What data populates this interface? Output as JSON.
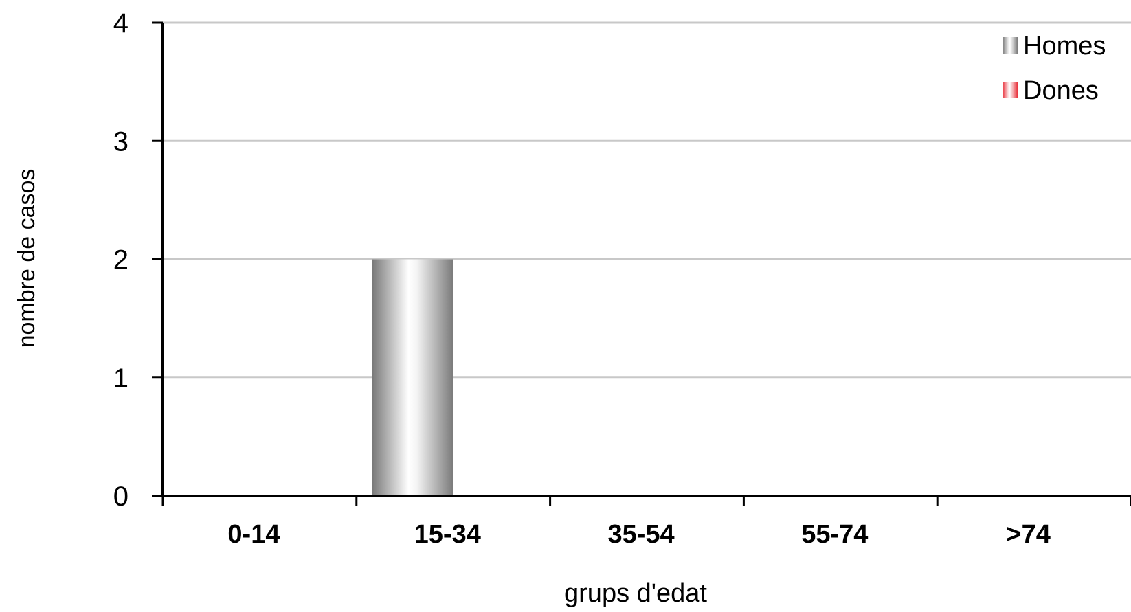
{
  "chart_data": {
    "type": "bar",
    "title": "",
    "xlabel": "grups d'edat",
    "ylabel": "nombre de casos",
    "categories": [
      "0-14",
      "15-34",
      "35-54",
      "55-74",
      ">74"
    ],
    "series": [
      {
        "name": "Homes",
        "values": [
          0,
          2,
          0,
          0,
          0
        ],
        "color": "#8c8c8c"
      },
      {
        "name": "Dones",
        "values": [
          0,
          0,
          0,
          0,
          0
        ],
        "color": "#e8303a"
      }
    ],
    "ylim": [
      0,
      4
    ],
    "yticks": [
      0,
      1,
      2,
      3,
      4
    ],
    "grid": true,
    "legend_position": "top-right"
  }
}
